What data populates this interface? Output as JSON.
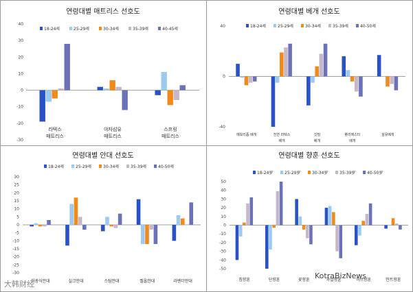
{
  "colors": [
    "#2a52c8",
    "#9ccaf0",
    "#f28a1a",
    "#c6b7c9",
    "#6b72b8"
  ],
  "watermarks": {
    "left": "大韩财经",
    "right": "KotraBizNews"
  },
  "chart_data": [
    {
      "type": "bar",
      "title": "연령대별 매트리스 선호도",
      "legend": [
        "18-24세",
        "25-29세",
        "30-34세",
        "35-39세",
        "40-45세"
      ],
      "categories": [
        "라텍스\n매트리스",
        "야자섬유\n매트리스",
        "스프링\n매트리스"
      ],
      "ylim": [
        -30,
        40
      ],
      "yticks": [
        -30,
        -20,
        -10,
        0,
        10,
        20,
        30,
        40
      ],
      "series": [
        {
          "name": "18-24세",
          "values": [
            -19,
            2,
            -3
          ]
        },
        {
          "name": "25-29세",
          "values": [
            -7,
            1,
            11
          ]
        },
        {
          "name": "30-34세",
          "values": [
            -5,
            6,
            -9
          ]
        },
        {
          "name": "35-39세",
          "values": [
            1,
            2,
            -6
          ]
        },
        {
          "name": "40-45세",
          "values": [
            28,
            -12,
            3
          ]
        }
      ]
    },
    {
      "type": "bar",
      "title": "연령대별 베개 선호도",
      "legend": [
        "18-24세",
        "25-29세",
        "30-34세",
        "35-39세",
        "40-50세"
      ],
      "categories": [
        "메모리폼 베개",
        "천연 라텍스\n베개",
        "깃털\n베개",
        "폴리에스터\n베개",
        "섬유베개"
      ],
      "ylim": [
        -40,
        40
      ],
      "yticks": [
        -40,
        0,
        40
      ],
      "series": [
        {
          "name": "18-24세",
          "values": [
            10,
            -40,
            -23,
            16,
            17
          ]
        },
        {
          "name": "25-29세",
          "values": [
            -1,
            -5,
            -5,
            5,
            0
          ]
        },
        {
          "name": "30-34세",
          "values": [
            -7,
            19,
            8,
            -4,
            -8
          ]
        },
        {
          "name": "35-39세",
          "values": [
            -5,
            23,
            18,
            -12,
            -6
          ]
        },
        {
          "name": "40-50세",
          "values": [
            -4,
            26,
            26,
            -16,
            -11
          ]
        }
      ]
    },
    {
      "type": "bar",
      "title": "연령대별 안대 선호도",
      "legend": [
        "18-24세",
        "25-29세",
        "30-34세",
        "35-39세",
        "40-50세"
      ],
      "categories": [
        "차광식안대",
        "실크안대",
        "스팀안대",
        "젤올안대",
        "라벤더안대"
      ],
      "ylim": [
        -30,
        30
      ],
      "yticks": [
        -30,
        -25,
        -20,
        -15,
        -10,
        -5,
        0,
        5,
        10,
        15,
        20,
        25,
        30
      ],
      "series": [
        {
          "name": "18-24세",
          "values": [
            -1,
            -13,
            -4,
            16,
            -10
          ]
        },
        {
          "name": "25-29세",
          "values": [
            1,
            13,
            5,
            -12,
            6
          ]
        },
        {
          "name": "30-34세",
          "values": [
            -1,
            17,
            -1,
            -12,
            4
          ]
        },
        {
          "name": "35-39세",
          "values": [
            -1,
            5,
            -2,
            -3,
            0
          ]
        },
        {
          "name": "40-50세",
          "values": [
            3,
            -3,
            7,
            -12,
            14
          ]
        }
      ]
    },
    {
      "type": "bar",
      "title": "연령대별 향훈 선호도",
      "legend": [
        "18-24岁",
        "25-29岁",
        "30-34岁",
        "35-39岁",
        "40-50岁"
      ],
      "categories": [
        "침향훈",
        "단향훈",
        "꽃향훈",
        "과일향훈",
        "허브향훈",
        "민트향훈"
      ],
      "ylim": [
        -50,
        50
      ],
      "yticks": [
        -50,
        -40,
        -30,
        -20,
        -10,
        0,
        10,
        20,
        30,
        40,
        50
      ],
      "series": [
        {
          "name": "18-24岁",
          "values": [
            -40,
            -50,
            30,
            20,
            -23,
            -4
          ]
        },
        {
          "name": "25-29岁",
          "values": [
            -13,
            -28,
            10,
            22,
            -12,
            0
          ]
        },
        {
          "name": "30-34岁",
          "values": [
            3,
            -3,
            -5,
            15,
            5,
            8
          ]
        },
        {
          "name": "35-39岁",
          "values": [
            25,
            39,
            -15,
            -30,
            13,
            2
          ]
        },
        {
          "name": "40-50岁",
          "values": [
            32,
            50,
            -22,
            -38,
            25,
            -5
          ]
        }
      ]
    }
  ]
}
